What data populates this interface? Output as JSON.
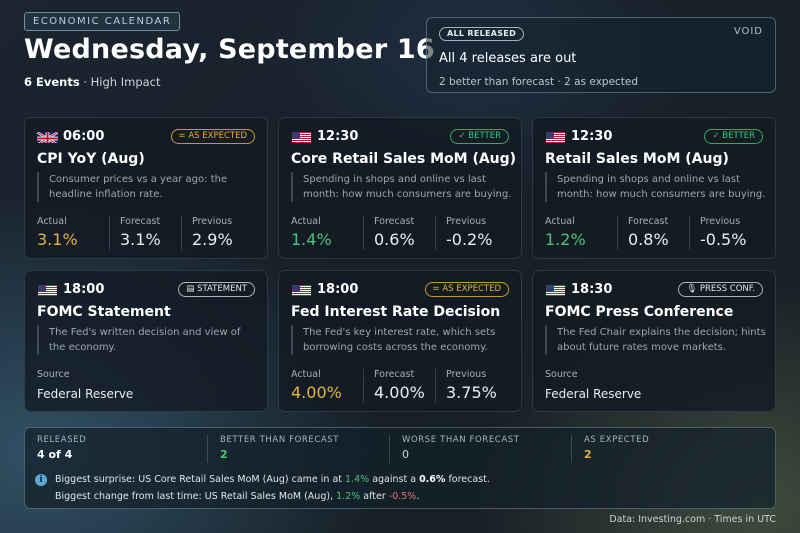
{
  "header": {
    "tag": "ECONOMIC CALENDAR",
    "title": "Wednesday, September 16",
    "event_count": "6 Events",
    "impact": "· High Impact"
  },
  "status": {
    "pill": "ALL RELEASED",
    "logo": "VOID",
    "headline": "All 4 releases are out",
    "detail": "2 better than forecast · 2 as expected"
  },
  "labels": {
    "actual": "Actual",
    "forecast": "Forecast",
    "previous": "Previous",
    "source": "Source"
  },
  "cards": [
    {
      "flag": "uk",
      "time": "06:00",
      "badge": "AS EXPECTED",
      "badge_icon": "equals-icon",
      "name": "CPI YoY (Aug)",
      "desc": "Consumer prices vs a year ago: the headline inflation rate.",
      "actual": "3.1%",
      "forecast": "3.1%",
      "previous": "2.9%",
      "actual_color": "#e3b341"
    },
    {
      "flag": "us",
      "time": "12:30",
      "badge": "BETTER",
      "badge_icon": "check-icon",
      "name": "Core Retail Sales MoM (Aug)",
      "desc": "Spending in shops and online vs last month: how much consumers are buying.",
      "actual": "1.4%",
      "forecast": "0.6%",
      "previous": "-0.2%",
      "actual_color": "#4cc27a"
    },
    {
      "flag": "us",
      "time": "12:30",
      "badge": "BETTER",
      "badge_icon": "check-icon",
      "name": "Retail Sales MoM (Aug)",
      "desc": "Spending in shops and online vs last month: how much consumers are buying.",
      "actual": "1.2%",
      "forecast": "0.8%",
      "previous": "-0.5%",
      "actual_color": "#4cc27a"
    },
    {
      "flag": "us",
      "time": "18:00",
      "badge": "STATEMENT",
      "badge_icon": "document-icon",
      "name": "FOMC Statement",
      "desc": "The Fed's written decision and view of the economy.",
      "source": "Federal Reserve"
    },
    {
      "flag": "us",
      "time": "18:00",
      "badge": "AS EXPECTED",
      "badge_icon": "equals-icon",
      "name": "Fed Interest Rate Decision",
      "desc": "The Fed's key interest rate, which sets borrowing costs across the economy.",
      "actual": "4.00%",
      "forecast": "4.00%",
      "previous": "3.75%",
      "actual_color": "#e3b341"
    },
    {
      "flag": "us",
      "time": "18:30",
      "badge": "PRESS CONF.",
      "badge_icon": "microphone-icon",
      "name": "FOMC Press Conference",
      "desc": "The Fed Chair explains the decision; hints about future rates move markets.",
      "source": "Federal Reserve"
    }
  ],
  "summary": {
    "released_label": "RELEASED",
    "released_value": "4 of 4",
    "better_label": "BETTER THAN FORECAST",
    "better_value": "2",
    "worse_label": "WORSE THAN FORECAST",
    "worse_value": "0",
    "expected_label": "AS EXPECTED",
    "expected_value": "2",
    "note1_a": "Biggest surprise: US Core Retail Sales MoM (Aug) came in at ",
    "note1_b": "1.4%",
    "note1_c": " against a ",
    "note1_d": "0.6%",
    "note1_e": " forecast.",
    "note2_a": "Biggest change from last time: US Retail Sales MoM (Aug), ",
    "note2_b": "1.2%",
    "note2_c": " after ",
    "note2_d": "-0.5%",
    "note2_e": "."
  },
  "footer": "Data: Investing.com  ·  Times in UTC"
}
